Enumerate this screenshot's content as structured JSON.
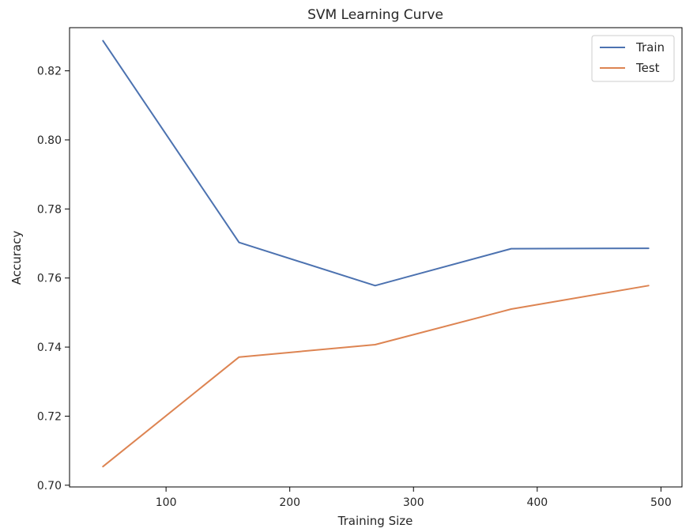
{
  "chart_data": {
    "type": "line",
    "title": "SVM Learning Curve",
    "xlabel": "Training Size",
    "ylabel": "Accuracy",
    "x": [
      49,
      159,
      269,
      379,
      490
    ],
    "xlim": [
      22,
      517
    ],
    "ylim": [
      0.6995,
      0.8325
    ],
    "xticks": [
      100,
      200,
      300,
      400,
      500
    ],
    "yticks": [
      0.7,
      0.72,
      0.74,
      0.76,
      0.78,
      0.8,
      0.82
    ],
    "xtick_labels": [
      "100",
      "200",
      "300",
      "400",
      "500"
    ],
    "ytick_labels": [
      "0.70",
      "0.72",
      "0.74",
      "0.76",
      "0.78",
      "0.80",
      "0.82"
    ],
    "grid": false,
    "legend_position": "top-right",
    "series": [
      {
        "name": "Train",
        "color": "#4c72b0",
        "values": [
          0.8287,
          0.7703,
          0.7578,
          0.7685,
          0.7686
        ]
      },
      {
        "name": "Test",
        "color": "#dd8452",
        "values": [
          0.7054,
          0.7371,
          0.7407,
          0.751,
          0.7578
        ]
      }
    ]
  }
}
